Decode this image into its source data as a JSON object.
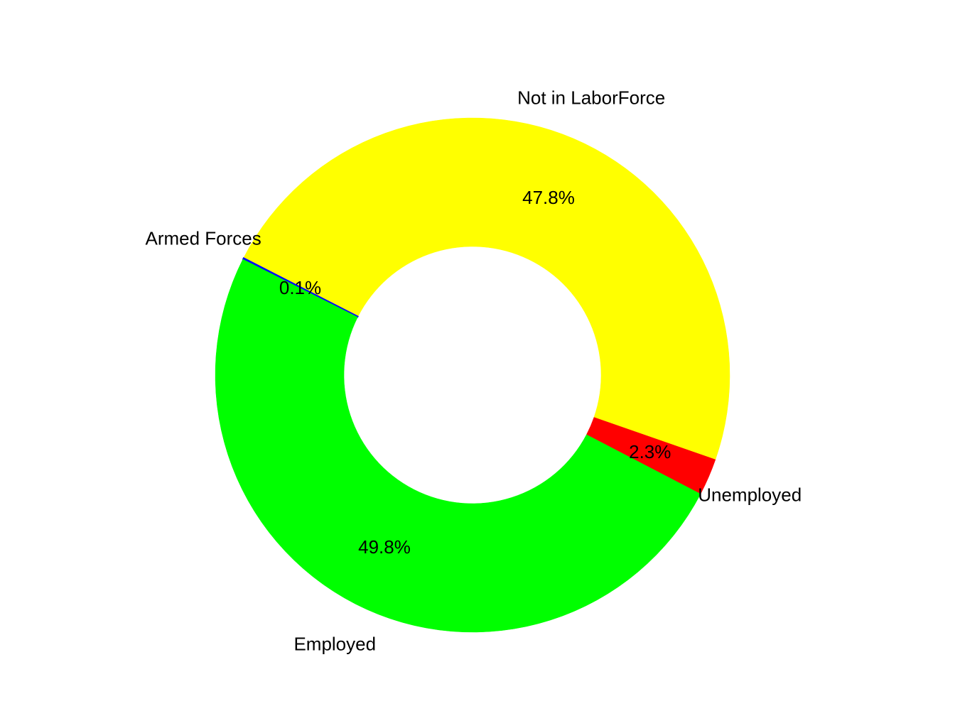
{
  "chart_data": {
    "type": "pie",
    "subtype": "donut",
    "title": "",
    "slices": [
      {
        "label": "Not in LaborForce",
        "value": 47.8,
        "pct_label": "47.8%",
        "color": "#FFFF00"
      },
      {
        "label": "Armed Forces",
        "value": 0.1,
        "pct_label": "0.1%",
        "color": "#0000FF"
      },
      {
        "label": "Employed",
        "value": 49.8,
        "pct_label": "49.8%",
        "color": "#00FF00"
      },
      {
        "label": "Unemployed",
        "value": 2.3,
        "pct_label": "2.3%",
        "color": "#FF0000"
      }
    ]
  }
}
